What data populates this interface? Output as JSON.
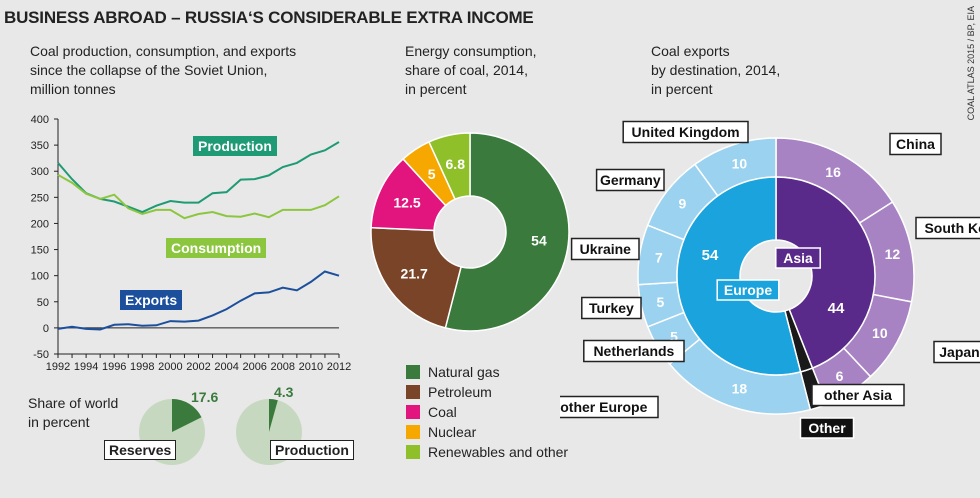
{
  "title": "BUSINESS ABROAD – RUSSIA‘S CONSIDERABLE EXTRA INCOME",
  "credit": "COAL ATLAS 2015 / BP, EIA",
  "colors": {
    "production": "#1e9a74",
    "consumption": "#8cc63f",
    "exports": "#1c4f9c",
    "natural_gas": "#3a7a3c",
    "petroleum": "#7a4428",
    "coal": "#e2157f",
    "nuclear": "#f6a800",
    "renewables": "#8fc02a",
    "europe_inner": "#1aa3dc",
    "europe_outer": "#9ad2f0",
    "asia_inner": "#5a2a8a",
    "asia_outer": "#a883c4",
    "other": "#1a1a1a",
    "pie_bg": "#c7d8c0",
    "pie_fill": "#3a7a3c"
  },
  "line_chart": {
    "subtitle": "Coal production, consumption, and exports\nsince the collapse of the Soviet Union,\nmillion tonnes",
    "labels": {
      "production": "Production",
      "consumption": "Consumption",
      "exports": "Exports"
    }
  },
  "share": {
    "subtitle": "Share of world\nin percent",
    "reserves": {
      "label": "Reserves",
      "value": "17.6",
      "pct": 17.6
    },
    "production": {
      "label": "Production",
      "value": "4.3",
      "pct": 4.3
    }
  },
  "energy": {
    "subtitle": "Energy consumption,\nshare of coal, 2014,\nin percent",
    "legend": [
      "Natural gas",
      "Petroleum",
      "Coal",
      "Nuclear",
      "Renewables and other"
    ]
  },
  "exports_dest": {
    "subtitle": "Coal exports\nby destination, 2014,\nin percent"
  },
  "chart_data": [
    {
      "type": "line",
      "x": [
        1992,
        1993,
        1994,
        1995,
        1996,
        1997,
        1998,
        1999,
        2000,
        2001,
        2002,
        2003,
        2004,
        2005,
        2006,
        2007,
        2008,
        2009,
        2010,
        2011,
        2012
      ],
      "series": [
        {
          "name": "Production",
          "values": [
            316,
            285,
            258,
            247,
            242,
            232,
            222,
            234,
            243,
            240,
            240,
            258,
            260,
            284,
            285,
            292,
            308,
            316,
            332,
            340,
            356
          ]
        },
        {
          "name": "Consumption",
          "values": [
            293,
            278,
            257,
            247,
            255,
            229,
            218,
            226,
            226,
            210,
            218,
            222,
            214,
            213,
            219,
            212,
            226,
            226,
            226,
            235,
            252
          ]
        },
        {
          "name": "Exports",
          "values": [
            -2,
            2,
            -2,
            -3,
            6,
            7,
            4,
            5,
            13,
            12,
            14,
            24,
            36,
            52,
            66,
            68,
            77,
            72,
            88,
            108,
            100
          ]
        }
      ],
      "xticks": [
        "1992",
        "1994",
        "1996",
        "1998",
        "2000",
        "2002",
        "2004",
        "2006",
        "2008",
        "2010",
        "2012"
      ],
      "yticks": [
        "400",
        "350",
        "300",
        "250",
        "200",
        "150",
        "100",
        "50",
        "0",
        "-50"
      ],
      "ylim": [
        -50,
        400
      ],
      "xlim": [
        1992,
        2012
      ],
      "grid": false
    },
    {
      "type": "pie",
      "title": "Share of world – Reserves",
      "labels": [
        "Reserves"
      ],
      "values": [
        17.6
      ]
    },
    {
      "type": "pie",
      "title": "Share of world – Production",
      "labels": [
        "Production"
      ],
      "values": [
        4.3
      ]
    },
    {
      "type": "pie",
      "title": "Energy consumption, share of coal, 2014",
      "labels": [
        "Natural gas",
        "Petroleum",
        "Coal",
        "Nuclear",
        "Renewables and other"
      ],
      "values": [
        54,
        21.7,
        12.5,
        5,
        6.8
      ],
      "value_labels": [
        "54",
        "21.7",
        "12.5",
        "5",
        "6.8"
      ]
    },
    {
      "type": "pie",
      "title": "Coal exports by destination, 2014 – regions",
      "labels": [
        "Asia",
        "Other",
        "Europe"
      ],
      "values": [
        44,
        2,
        54
      ]
    },
    {
      "type": "pie",
      "title": "Coal exports by destination, 2014 – countries",
      "labels": [
        "China",
        "South Korea",
        "Japan",
        "other Asia",
        "Other",
        "other Europe",
        "Netherlands",
        "Turkey",
        "Ukraine",
        "Germany",
        "United Kingdom"
      ],
      "values": [
        16,
        12,
        10,
        6,
        2,
        18,
        5,
        5,
        7,
        9,
        10
      ],
      "value_labels": [
        "16",
        "12",
        "10",
        "6",
        "",
        "18",
        "5",
        "5",
        "7",
        "9",
        "10"
      ],
      "region": [
        "asia",
        "asia",
        "asia",
        "asia",
        "other",
        "europe",
        "europe",
        "europe",
        "europe",
        "europe",
        "europe"
      ]
    }
  ]
}
